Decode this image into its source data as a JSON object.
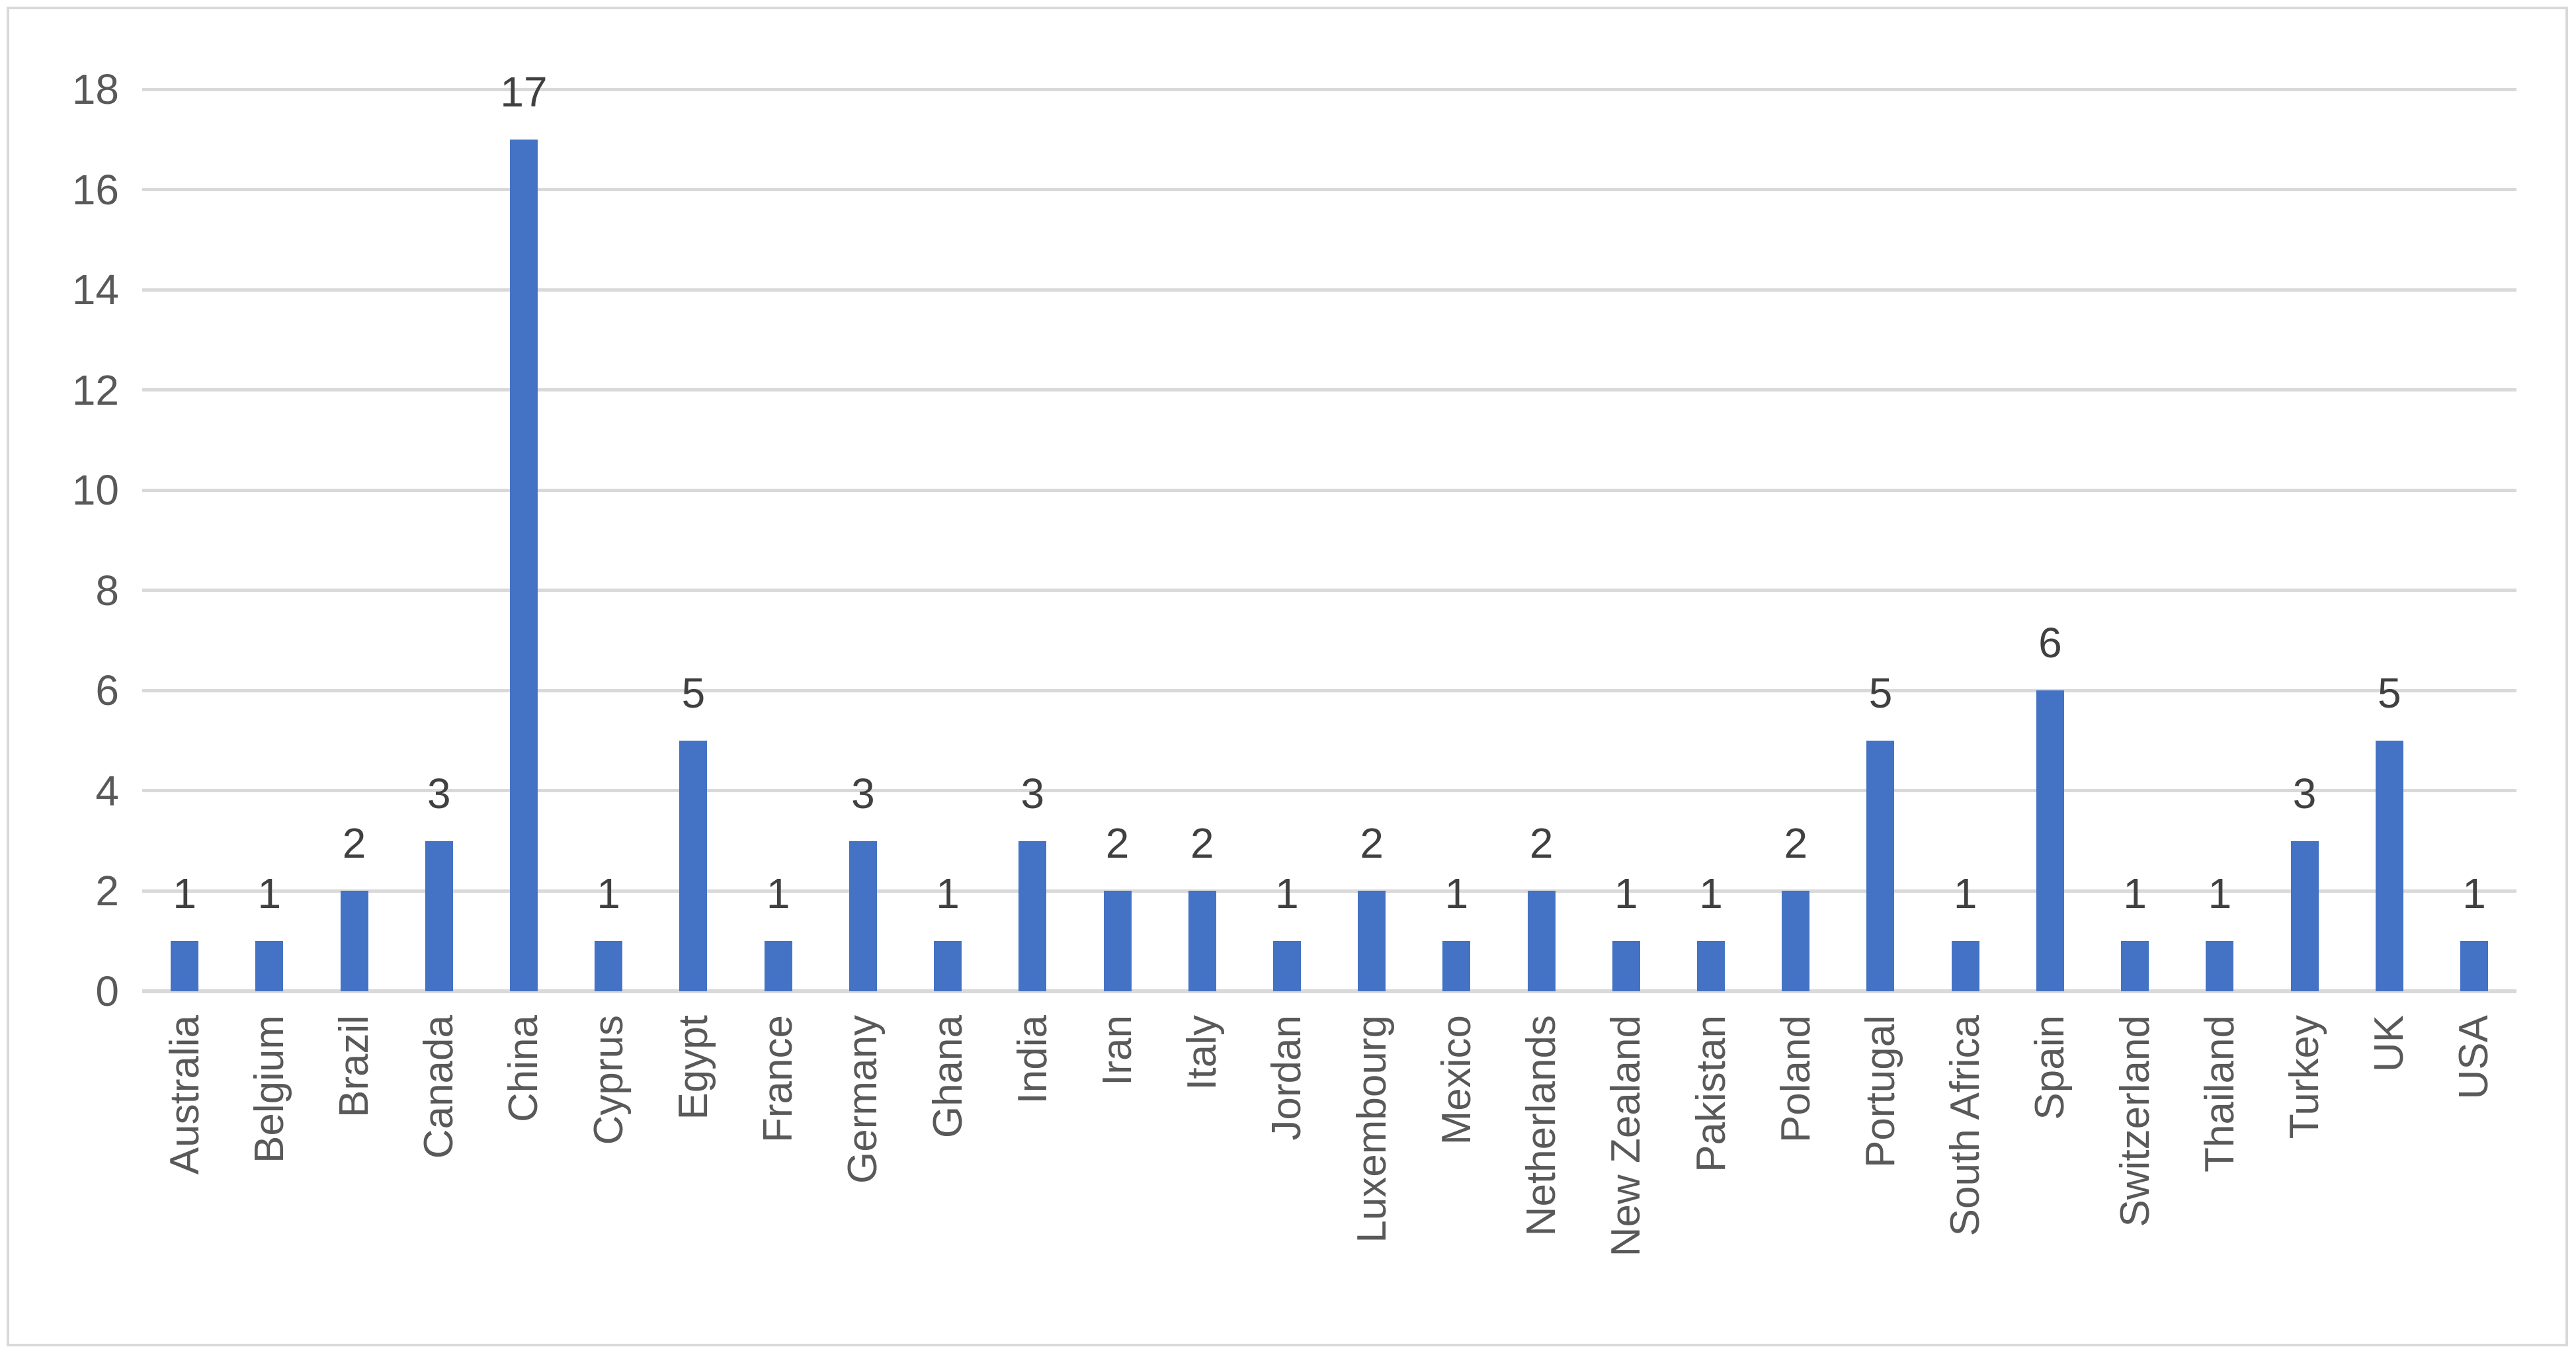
{
  "chart_data": {
    "type": "bar",
    "title": "",
    "xlabel": "",
    "ylabel": "",
    "categories": [
      "Australia",
      "Belgium",
      "Brazil",
      "Canada",
      "China",
      "Cyprus",
      "Egypt",
      "France",
      "Germany",
      "Ghana",
      "India",
      "Iran",
      "Italy",
      "Jordan",
      "Luxembourg",
      "Mexico",
      "Netherlands",
      "New Zealand",
      "Pakistan",
      "Poland",
      "Portugal",
      "South Africa",
      "Spain",
      "Switzerland",
      "Thailand",
      "Turkey",
      "UK",
      "USA"
    ],
    "values": [
      1,
      1,
      2,
      3,
      17,
      1,
      5,
      1,
      3,
      1,
      3,
      2,
      2,
      1,
      2,
      1,
      2,
      1,
      1,
      2,
      5,
      1,
      6,
      1,
      1,
      3,
      5,
      1
    ],
    "ylim": [
      0,
      18
    ],
    "yticks": [
      0,
      2,
      4,
      6,
      8,
      10,
      12,
      14,
      16,
      18
    ],
    "grid": true,
    "legend_position": "none",
    "bar_color": "#4472C4",
    "gridline_color": "#D9D9D9",
    "axis_line_color": "#D9D9D9",
    "tick_label_color": "#595959",
    "value_label_color": "#404040",
    "frame_border_color": "#D9D9D9",
    "background_color": "#FFFFFF"
  }
}
